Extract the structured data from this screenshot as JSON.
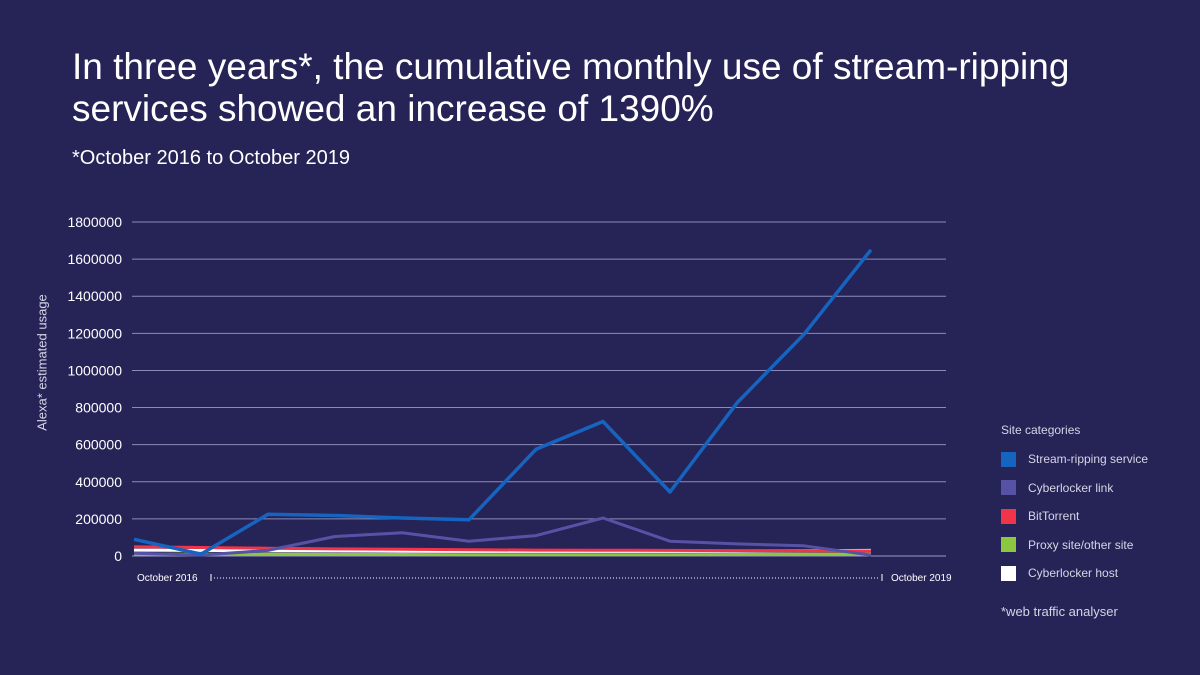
{
  "title": "In three years*, the cumulative monthly use of stream-ripping services showed an increase of 1390%",
  "subtitle": "*October 2016  to October 2019",
  "footnote": "*web traffic analyser",
  "legend_title": "Site categories",
  "chart_data": {
    "type": "line",
    "ylabel": "Alexa* estimated usage",
    "xlabel": "",
    "x_start_label": "October 2016",
    "x_end_label": "October 2019",
    "ylim": [
      0,
      1800000
    ],
    "yticks": [
      "0",
      "200000",
      "400000",
      "600000",
      "800000",
      "1000000",
      "1200000",
      "1400000",
      "1600000",
      "1800000"
    ],
    "grid": true,
    "legend_position": "right",
    "x": [
      0,
      1,
      2,
      3,
      4,
      5,
      6,
      7,
      8,
      9,
      10,
      11,
      12
    ],
    "series": [
      {
        "name": "Stream-ripping service",
        "color": "#1565c0",
        "values": [
          90000,
          10000,
          225000,
          218000,
          205000,
          195000,
          575000,
          725000,
          345000,
          825000,
          1195000,
          1650000,
          null
        ]
      },
      {
        "name": "Cyberlocker link",
        "color": "#5752a6",
        "values": [
          15000,
          5000,
          30000,
          105000,
          125000,
          80000,
          110000,
          205000,
          80000,
          65000,
          55000,
          5000,
          null
        ]
      },
      {
        "name": "BitTorrent",
        "color": "#f0354a",
        "values": [
          50000,
          46000,
          42000,
          38000,
          36000,
          34000,
          32000,
          31000,
          30000,
          29000,
          28000,
          27000,
          null
        ]
      },
      {
        "name": "Proxy site/other site",
        "color": "#8dc63f",
        "values": [
          10000,
          9000,
          9000,
          8000,
          8000,
          7000,
          7000,
          7000,
          7000,
          8000,
          9000,
          10000,
          null
        ]
      },
      {
        "name": "Cyberlocker host",
        "color": "#ffffff",
        "values": [
          32000,
          30000,
          28000,
          27000,
          26000,
          25000,
          25000,
          25000,
          25000,
          26000,
          28000,
          30000,
          null
        ]
      }
    ]
  }
}
